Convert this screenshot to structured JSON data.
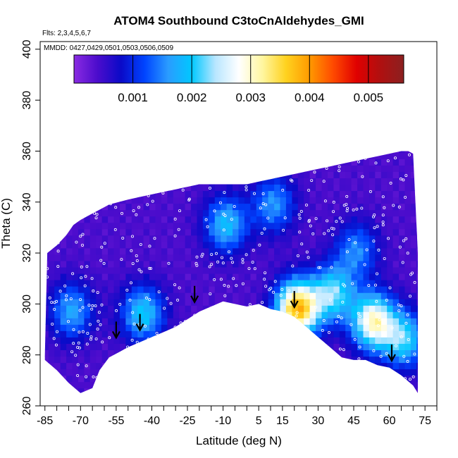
{
  "chart_data": {
    "type": "heatmap",
    "title": "ATOM4 Southbound C3toCnAldehydes_GMI",
    "flights_note": "Flts: 2,3,4,5,6,7",
    "dates_note": "MMDD: 0427,0429,0501,0503,0506,0509",
    "xlabel": "Latitude (deg N)",
    "ylabel": "Theta (C)",
    "xlim": [
      -87,
      80
    ],
    "ylim": [
      260,
      403
    ],
    "x_ticks": [
      -85,
      -70,
      -55,
      -40,
      -25,
      -10,
      5,
      15,
      30,
      45,
      60,
      75
    ],
    "x_tick_labels": [
      "-85",
      "-70",
      "-55",
      "-40",
      "-25",
      "-10",
      "5",
      "15",
      "30",
      "45",
      "60",
      "75"
    ],
    "y_ticks": [
      260,
      280,
      300,
      320,
      340,
      360,
      380,
      400
    ],
    "y_tick_labels": [
      "260",
      "280",
      "300",
      "320",
      "340",
      "360",
      "380",
      "400"
    ],
    "colorbar": {
      "range": [
        0,
        0.0056
      ],
      "ticks": [
        0.001,
        0.002,
        0.003,
        0.004,
        0.005
      ],
      "tick_labels": [
        "0.001",
        "0.002",
        "0.003",
        "0.004",
        "0.005"
      ],
      "colors": [
        "#8a2be2",
        "#4b0ccc",
        "#0a0ac8",
        "#0044ff",
        "#2a9cff",
        "#00c8ff",
        "#b8e6ff",
        "#ffffff",
        "#fff6a0",
        "#ffd21f",
        "#ff9a00",
        "#ff4a00",
        "#e00000",
        "#b01010",
        "#8b2020"
      ]
    },
    "domain_outline": {
      "lat": [
        -85,
        -84,
        -80,
        -76,
        -73,
        -70,
        -66,
        -62,
        -58,
        -54,
        -50,
        -45,
        -40,
        -35,
        -30,
        -25,
        -20,
        -15,
        -10,
        -5,
        0,
        5,
        10,
        15,
        -5,
        0,
        5,
        10,
        15,
        20,
        25,
        30,
        35,
        40,
        45,
        50,
        55,
        60,
        65,
        68,
        70,
        72,
        72
      ],
      "theta_top": [
        280,
        320,
        323,
        327,
        331,
        333,
        335,
        337,
        339,
        340,
        341,
        342,
        343,
        344,
        345,
        346,
        347,
        347,
        347,
        347,
        347,
        347,
        347,
        347,
        347,
        347,
        348,
        349,
        350,
        351,
        352,
        353,
        354,
        355,
        356,
        357,
        358,
        359,
        360,
        360,
        359,
        320,
        300
      ]
    },
    "lower_boundary": {
      "lat": [
        -85,
        -80,
        -75,
        -70,
        -65,
        -62,
        -58,
        -54,
        -50,
        -45,
        -40,
        -35,
        -30,
        -25,
        -20,
        -15,
        -10,
        -5,
        0,
        5,
        10,
        15,
        20,
        25,
        30,
        35,
        40,
        45,
        50,
        55,
        60,
        65,
        70,
        72
      ],
      "theta": [
        278,
        274,
        269,
        265,
        267,
        274,
        279,
        281,
        283,
        285,
        287,
        289,
        291,
        294,
        297,
        299,
        301,
        300,
        299,
        300,
        298,
        297,
        295,
        291,
        287,
        283,
        279,
        278,
        278,
        276,
        275,
        272,
        268,
        265
      ]
    },
    "hotspots": [
      {
        "lat": 20,
        "theta": 297,
        "value": 0.0038
      },
      {
        "lat": 52,
        "theta": 292,
        "value": 0.003
      },
      {
        "lat": 35,
        "theta": 303,
        "value": 0.0022
      },
      {
        "lat": -10,
        "theta": 330,
        "value": 0.0019
      },
      {
        "lat": -45,
        "theta": 295,
        "value": 0.002
      },
      {
        "lat": -75,
        "theta": 296,
        "value": 0.0017
      },
      {
        "lat": 10,
        "theta": 338,
        "value": 0.0016
      },
      {
        "lat": 45,
        "theta": 320,
        "value": 0.0015
      },
      {
        "lat": 65,
        "theta": 285,
        "value": 0.0021
      }
    ],
    "background_value": 0.0004,
    "arrows": [
      {
        "lat": -55,
        "theta": 287
      },
      {
        "lat": -45,
        "theta": 290
      },
      {
        "lat": -22,
        "theta": 301
      },
      {
        "lat": 20,
        "theta": 299
      },
      {
        "lat": 61,
        "theta": 278
      }
    ]
  }
}
